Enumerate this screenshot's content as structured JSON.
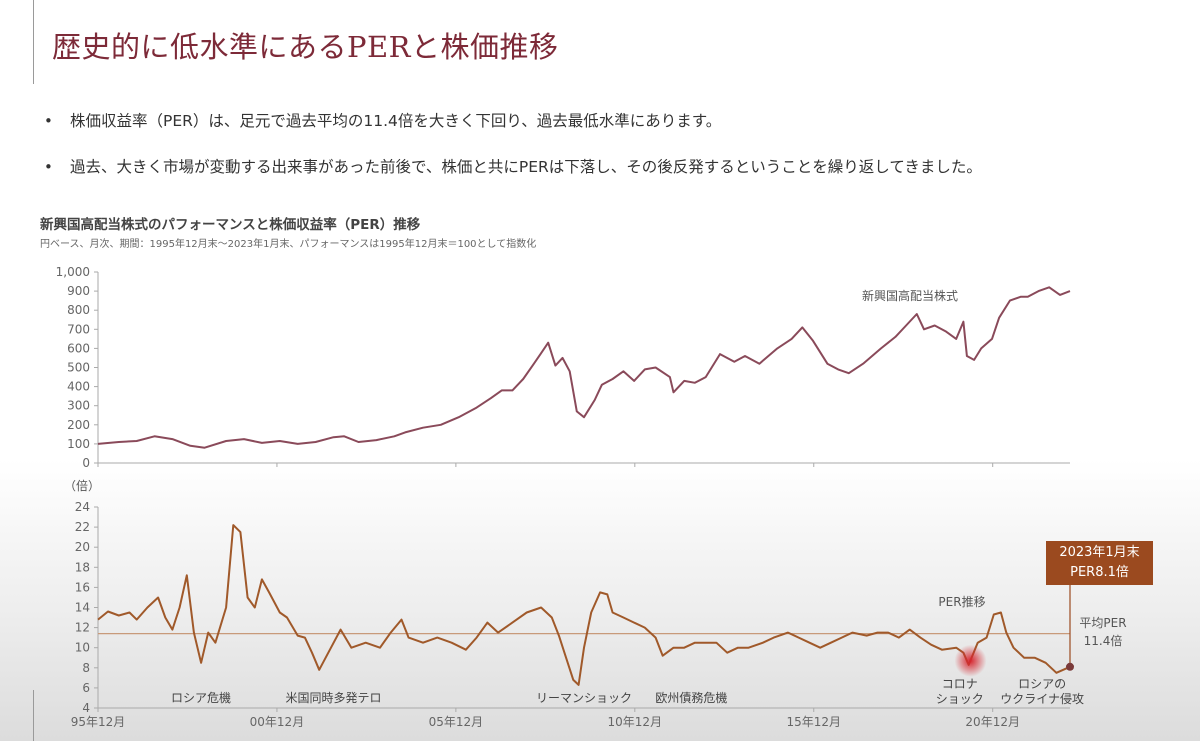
{
  "header": {
    "title": "歴史的に低水準にあるPERと株価推移"
  },
  "bullets": [
    "株価収益率（PER）は、足元で過去平均の11.4倍を大きく下回り、過去最低水準にあります。",
    "過去、大きく市場が変動する出来事があった前後で、株価と共にPERは下落し、その後反発するということを繰り返してきました。"
  ],
  "bullet_marker": "•",
  "chart_data": {
    "type": "line",
    "title": "新興国高配当株式のパフォーマンスと株価収益率（PER）推移",
    "subtitle": "円ベース、月次、期間：1995年12月末～2023年1月末、パフォーマンスは1995年12月末＝100として指数化",
    "x_ticks": [
      "95年12月",
      "00年12月",
      "05年12月",
      "10年12月",
      "15年12月",
      "20年12月"
    ],
    "x_tick_years": [
      1995.92,
      2000.92,
      2005.92,
      2010.92,
      2015.92,
      2020.92
    ],
    "xlim": [
      1995.92,
      2023.08
    ],
    "panels": [
      {
        "name": "performance",
        "ylim": [
          0,
          1000
        ],
        "y_ticks": [
          "0",
          "100",
          "200",
          "300",
          "400",
          "500",
          "600",
          "700",
          "800",
          "900",
          "1,000"
        ],
        "series": [
          {
            "name": "新興国高配当株式",
            "color": "#8a4a5a",
            "points": [
              [
                1995.92,
                100
              ],
              [
                1996.5,
                110
              ],
              [
                1997.0,
                115
              ],
              [
                1997.5,
                140
              ],
              [
                1998.0,
                125
              ],
              [
                1998.5,
                90
              ],
              [
                1998.9,
                80
              ],
              [
                1999.5,
                115
              ],
              [
                2000.0,
                125
              ],
              [
                2000.5,
                105
              ],
              [
                2001.0,
                115
              ],
              [
                2001.5,
                100
              ],
              [
                2002.0,
                110
              ],
              [
                2002.5,
                135
              ],
              [
                2002.8,
                140
              ],
              [
                2003.2,
                110
              ],
              [
                2003.7,
                120
              ],
              [
                2004.2,
                140
              ],
              [
                2004.5,
                160
              ],
              [
                2005.0,
                185
              ],
              [
                2005.5,
                200
              ],
              [
                2006.0,
                240
              ],
              [
                2006.5,
                290
              ],
              [
                2006.9,
                340
              ],
              [
                2007.2,
                380
              ],
              [
                2007.5,
                380
              ],
              [
                2007.8,
                440
              ],
              [
                2008.1,
                520
              ],
              [
                2008.3,
                575
              ],
              [
                2008.5,
                630
              ],
              [
                2008.7,
                510
              ],
              [
                2008.9,
                550
              ],
              [
                2009.1,
                480
              ],
              [
                2009.3,
                270
              ],
              [
                2009.5,
                240
              ],
              [
                2009.8,
                330
              ],
              [
                2010.0,
                410
              ],
              [
                2010.3,
                440
              ],
              [
                2010.6,
                480
              ],
              [
                2010.9,
                430
              ],
              [
                2011.2,
                490
              ],
              [
                2011.5,
                500
              ],
              [
                2011.9,
                450
              ],
              [
                2012.0,
                370
              ],
              [
                2012.3,
                430
              ],
              [
                2012.6,
                420
              ],
              [
                2012.9,
                450
              ],
              [
                2013.3,
                570
              ],
              [
                2013.7,
                530
              ],
              [
                2014.0,
                560
              ],
              [
                2014.4,
                520
              ],
              [
                2014.9,
                600
              ],
              [
                2015.3,
                650
              ],
              [
                2015.6,
                710
              ],
              [
                2015.9,
                640
              ],
              [
                2016.3,
                520
              ],
              [
                2016.6,
                490
              ],
              [
                2016.9,
                470
              ],
              [
                2017.3,
                520
              ],
              [
                2017.8,
                600
              ],
              [
                2018.2,
                660
              ],
              [
                2018.5,
                720
              ],
              [
                2018.8,
                780
              ],
              [
                2019.0,
                700
              ],
              [
                2019.3,
                720
              ],
              [
                2019.6,
                690
              ],
              [
                2019.9,
                650
              ],
              [
                2020.1,
                740
              ],
              [
                2020.2,
                560
              ],
              [
                2020.4,
                540
              ],
              [
                2020.6,
                600
              ],
              [
                2020.9,
                650
              ],
              [
                2021.1,
                760
              ],
              [
                2021.4,
                850
              ],
              [
                2021.7,
                870
              ],
              [
                2021.9,
                870
              ],
              [
                2022.2,
                900
              ],
              [
                2022.5,
                920
              ],
              [
                2022.8,
                880
              ],
              [
                2023.08,
                900
              ]
            ]
          }
        ]
      },
      {
        "name": "per",
        "ylim": [
          4,
          24
        ],
        "ylabel": "（倍）",
        "y_ticks": [
          "4",
          "6",
          "8",
          "10",
          "12",
          "14",
          "16",
          "18",
          "20",
          "22",
          "24"
        ],
        "series": [
          {
            "name": "PER推移",
            "color": "#a0592a",
            "points": [
              [
                1995.92,
                12.8
              ],
              [
                1996.2,
                13.6
              ],
              [
                1996.5,
                13.2
              ],
              [
                1996.8,
                13.5
              ],
              [
                1997.0,
                12.8
              ],
              [
                1997.3,
                14.0
              ],
              [
                1997.6,
                15.0
              ],
              [
                1997.8,
                13.0
              ],
              [
                1998.0,
                11.8
              ],
              [
                1998.2,
                14.0
              ],
              [
                1998.4,
                17.2
              ],
              [
                1998.6,
                11.5
              ],
              [
                1998.8,
                8.5
              ],
              [
                1999.0,
                11.5
              ],
              [
                1999.2,
                10.5
              ],
              [
                1999.5,
                14.0
              ],
              [
                1999.7,
                22.2
              ],
              [
                1999.9,
                21.5
              ],
              [
                2000.1,
                15.0
              ],
              [
                2000.3,
                14.0
              ],
              [
                2000.5,
                16.8
              ],
              [
                2000.7,
                15.5
              ],
              [
                2001.0,
                13.5
              ],
              [
                2001.2,
                13.0
              ],
              [
                2001.5,
                11.2
              ],
              [
                2001.7,
                11.0
              ],
              [
                2001.9,
                9.5
              ],
              [
                2002.1,
                7.8
              ],
              [
                2002.4,
                9.8
              ],
              [
                2002.7,
                11.8
              ],
              [
                2003.0,
                10.0
              ],
              [
                2003.4,
                10.5
              ],
              [
                2003.8,
                10.0
              ],
              [
                2004.1,
                11.5
              ],
              [
                2004.4,
                12.8
              ],
              [
                2004.6,
                11.0
              ],
              [
                2005.0,
                10.5
              ],
              [
                2005.4,
                11.0
              ],
              [
                2005.8,
                10.5
              ],
              [
                2006.2,
                9.8
              ],
              [
                2006.5,
                11.0
              ],
              [
                2006.8,
                12.5
              ],
              [
                2007.1,
                11.5
              ],
              [
                2007.5,
                12.5
              ],
              [
                2007.9,
                13.5
              ],
              [
                2008.3,
                14.0
              ],
              [
                2008.6,
                13.0
              ],
              [
                2008.8,
                11.2
              ],
              [
                2009.0,
                9.0
              ],
              [
                2009.2,
                6.8
              ],
              [
                2009.35,
                6.3
              ],
              [
                2009.5,
                10.0
              ],
              [
                2009.7,
                13.5
              ],
              [
                2009.95,
                15.5
              ],
              [
                2010.15,
                15.3
              ],
              [
                2010.3,
                13.5
              ],
              [
                2010.6,
                13.0
              ],
              [
                2010.9,
                12.5
              ],
              [
                2011.2,
                12.0
              ],
              [
                2011.5,
                11.0
              ],
              [
                2011.7,
                9.2
              ],
              [
                2012.0,
                10.0
              ],
              [
                2012.3,
                10.0
              ],
              [
                2012.6,
                10.5
              ],
              [
                2012.9,
                10.5
              ],
              [
                2013.2,
                10.5
              ],
              [
                2013.5,
                9.5
              ],
              [
                2013.8,
                10.0
              ],
              [
                2014.1,
                10.0
              ],
              [
                2014.5,
                10.5
              ],
              [
                2014.8,
                11.0
              ],
              [
                2015.2,
                11.5
              ],
              [
                2015.5,
                11.0
              ],
              [
                2015.8,
                10.5
              ],
              [
                2016.1,
                10.0
              ],
              [
                2016.4,
                10.5
              ],
              [
                2016.7,
                11.0
              ],
              [
                2017.0,
                11.5
              ],
              [
                2017.4,
                11.2
              ],
              [
                2017.7,
                11.5
              ],
              [
                2018.0,
                11.5
              ],
              [
                2018.3,
                11.0
              ],
              [
                2018.6,
                11.8
              ],
              [
                2018.9,
                11.0
              ],
              [
                2019.2,
                10.3
              ],
              [
                2019.5,
                9.8
              ],
              [
                2019.9,
                10.0
              ],
              [
                2020.1,
                9.5
              ],
              [
                2020.25,
                8.3
              ],
              [
                2020.5,
                10.5
              ],
              [
                2020.75,
                11.0
              ],
              [
                2020.95,
                13.3
              ],
              [
                2021.15,
                13.5
              ],
              [
                2021.3,
                11.5
              ],
              [
                2021.5,
                10.0
              ],
              [
                2021.8,
                9.0
              ],
              [
                2022.1,
                9.0
              ],
              [
                2022.4,
                8.5
              ],
              [
                2022.7,
                7.5
              ],
              [
                2023.08,
                8.1
              ]
            ]
          }
        ],
        "reference_line": {
          "label": "平均PER",
          "value_label": "11.4倍",
          "value": 11.4,
          "color": "#c89a7a"
        },
        "callout": {
          "lines": [
            "2023年1月末",
            "PER8.1倍"
          ],
          "value": 8.1,
          "color": "#9b4a1f"
        },
        "highlight": {
          "x": 2020.3,
          "y": 8.7,
          "color": "#d6262f"
        },
        "annotations": [
          {
            "lines": [
              "ロシア危機"
            ],
            "x": 1998.8
          },
          {
            "lines": [
              "米国同時多発テロ"
            ],
            "x": 2002.5
          },
          {
            "lines": [
              "リーマンショック"
            ],
            "x": 2009.5
          },
          {
            "lines": [
              "欧州債務危機"
            ],
            "x": 2012.5
          },
          {
            "lines": [
              "コロナ",
              "ショック"
            ],
            "x": 2020.0
          },
          {
            "lines": [
              "ロシアの",
              "ウクライナ侵攻"
            ],
            "x": 2022.3
          }
        ]
      }
    ]
  }
}
